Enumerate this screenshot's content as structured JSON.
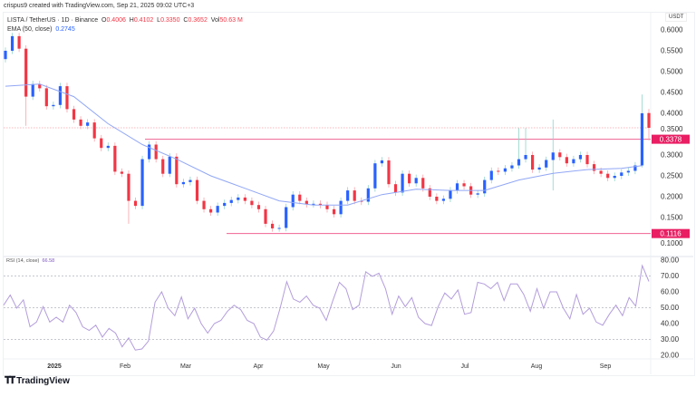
{
  "header": {
    "credit": "crispus9 created with TradingView.com, Sep 21, 2025 09:02 UTC+3"
  },
  "legend": {
    "symbol": "LISTA / TetherUS · 1D · Binance",
    "o_label": "O",
    "o": "0.4006",
    "h_label": "H",
    "h": "0.4102",
    "l_label": "L",
    "l": "0.3350",
    "c_label": "C",
    "c": "0.3652",
    "vol_label": "Vol",
    "vol": "50.63 M",
    "ema_label": "EMA (50, close)",
    "ema_value": "0.2745",
    "rsi_label": "RSI (14, close)",
    "rsi_value": "66.58"
  },
  "currency": "USDT",
  "footer": {
    "brand": "TradingView"
  },
  "colors": {
    "up": "#2962ff",
    "down": "#f23645",
    "up_wick": "#8fd3c7",
    "down_wick": "#f7a1a9",
    "ema": "#91a7f5",
    "rsi": "#b39ddb",
    "level": "#f06292",
    "label_bg": "#e91e63"
  },
  "chart_data": [
    {
      "type": "candlestick",
      "title": "LISTA / TetherUS · 1D · Binance",
      "y_ticks": [
        "0.6000",
        "0.5500",
        "0.5000",
        "0.4500",
        "0.4000",
        "0.3500",
        "0.3000",
        "0.2500",
        "0.2000",
        "0.1500",
        "0.1000"
      ],
      "ylim": [
        0.1,
        0.6
      ],
      "x_ticks": [
        "2025",
        "Feb",
        "Mar",
        "Apr",
        "May",
        "Jun",
        "Jul",
        "Aug",
        "Sep"
      ],
      "closes": [
        0.55,
        0.585,
        0.555,
        0.44,
        0.47,
        0.46,
        0.417,
        0.42,
        0.465,
        0.41,
        0.385,
        0.37,
        0.378,
        0.34,
        0.317,
        0.322,
        0.26,
        0.255,
        0.19,
        0.178,
        0.29,
        0.325,
        0.29,
        0.255,
        0.296,
        0.23,
        0.235,
        0.24,
        0.19,
        0.17,
        0.162,
        0.178,
        0.185,
        0.192,
        0.198,
        0.19,
        0.18,
        0.17,
        0.135,
        0.124,
        0.125,
        0.175,
        0.205,
        0.19,
        0.182,
        0.183,
        0.18,
        0.17,
        0.158,
        0.19,
        0.215,
        0.19,
        0.188,
        0.22,
        0.28,
        0.287,
        0.23,
        0.21,
        0.255,
        0.232,
        0.245,
        0.22,
        0.2,
        0.19,
        0.195,
        0.215,
        0.232,
        0.225,
        0.205,
        0.208,
        0.24,
        0.262,
        0.26,
        0.268,
        0.275,
        0.29,
        0.3,
        0.265,
        0.27,
        0.288,
        0.306,
        0.295,
        0.28,
        0.29,
        0.3,
        0.278,
        0.262,
        0.255,
        0.245,
        0.25,
        0.258,
        0.262,
        0.275
      ],
      "last_candles": [
        {
          "o": 0.275,
          "h": 0.445,
          "l": 0.27,
          "c": 0.4
        },
        {
          "o": 0.4006,
          "h": 0.4102,
          "l": 0.335,
          "c": 0.3652
        }
      ],
      "extreme_wicks": [
        {
          "i": 3,
          "low": 0.37
        },
        {
          "i": 18,
          "low": 0.135
        },
        {
          "i": 75,
          "high": 0.365
        },
        {
          "i": 76,
          "high": 0.365
        },
        {
          "i": 80,
          "high": 0.385,
          "low": 0.215
        }
      ],
      "ema": {
        "name": "EMA (50, close)",
        "values": [
          0.465,
          0.47,
          0.44,
          0.375,
          0.325,
          0.29,
          0.25,
          0.22,
          0.19,
          0.18,
          0.18,
          0.205,
          0.218,
          0.215,
          0.215,
          0.24,
          0.256,
          0.265,
          0.268,
          0.2745
        ]
      },
      "current_price": 0.3652,
      "levels": [
        {
          "value": 0.3378,
          "label": "0.3378"
        },
        {
          "value": 0.1116,
          "label": "0.1116"
        }
      ]
    },
    {
      "type": "line",
      "title": "RSI (14, close)",
      "y_ticks": [
        "80.00",
        "70.00",
        "60.00",
        "50.00",
        "40.00",
        "30.00",
        "20.00"
      ],
      "ylim": [
        20,
        80
      ],
      "bands": [
        70,
        50,
        30
      ],
      "values": [
        51.6,
        58,
        49.7,
        55,
        38,
        41,
        50.7,
        41,
        44,
        41,
        51.6,
        47,
        38,
        35.7,
        39,
        31.5,
        37,
        34,
        25.4,
        31,
        23.3,
        24,
        29,
        53.5,
        60,
        49.7,
        45,
        56.8,
        43,
        49.7,
        40,
        34,
        40,
        42,
        47.8,
        51.6,
        48.8,
        42,
        40,
        31.5,
        29.6,
        35.3,
        49.7,
        66.4,
        55.5,
        53.5,
        57.4,
        51.6,
        49.7,
        42,
        54.5,
        66,
        62,
        48.8,
        51.6,
        72.7,
        69.8,
        71.8,
        62,
        45.9,
        57.4,
        50.7,
        56.4,
        44,
        40,
        38.8,
        50.7,
        59.3,
        55.5,
        61.2,
        45.9,
        47,
        66,
        65,
        62,
        66,
        54.5,
        65,
        65,
        58.3,
        47.8,
        62,
        49.7,
        60,
        60,
        49.7,
        43,
        58.3,
        45.9,
        49.7,
        41,
        39,
        45.9,
        51.6,
        45,
        56.4,
        51,
        76.5,
        66.58
      ]
    }
  ]
}
